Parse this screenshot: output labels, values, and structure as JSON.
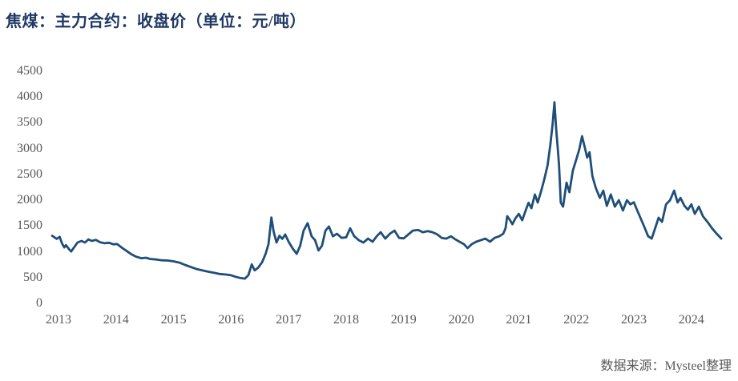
{
  "chart_data": {
    "type": "line",
    "title": "焦煤：主力合约：收盘价（单位：元/吨）",
    "source": "数据来源：Mysteel整理",
    "xlabel": "",
    "ylabel": "元/吨",
    "ylim": [
      0,
      4500
    ],
    "yticks": [
      0,
      500,
      1000,
      1500,
      2000,
      2500,
      3000,
      3500,
      4000,
      4500
    ],
    "xticks": [
      2013,
      2014,
      2015,
      2016,
      2017,
      2018,
      2019,
      2020,
      2021,
      2022,
      2023,
      2024
    ],
    "grid": false,
    "legend_position": "none",
    "colors": {
      "line": "#1F4E79",
      "title": "#1F3864",
      "axis_labels": "#595959",
      "source_text": "#595959"
    },
    "series": [
      {
        "name": "焦煤主力合约收盘价",
        "points": [
          [
            2012.89,
            1310
          ],
          [
            2012.97,
            1250
          ],
          [
            2013.02,
            1290
          ],
          [
            2013.06,
            1165
          ],
          [
            2013.1,
            1085
          ],
          [
            2013.13,
            1130
          ],
          [
            2013.18,
            1055
          ],
          [
            2013.22,
            1005
          ],
          [
            2013.27,
            1085
          ],
          [
            2013.33,
            1180
          ],
          [
            2013.4,
            1210
          ],
          [
            2013.46,
            1180
          ],
          [
            2013.52,
            1240
          ],
          [
            2013.58,
            1210
          ],
          [
            2013.65,
            1230
          ],
          [
            2013.72,
            1185
          ],
          [
            2013.8,
            1165
          ],
          [
            2013.88,
            1175
          ],
          [
            2013.95,
            1145
          ],
          [
            2014.02,
            1150
          ],
          [
            2014.1,
            1080
          ],
          [
            2014.18,
            1020
          ],
          [
            2014.27,
            950
          ],
          [
            2014.35,
            905
          ],
          [
            2014.44,
            875
          ],
          [
            2014.52,
            885
          ],
          [
            2014.6,
            860
          ],
          [
            2014.7,
            850
          ],
          [
            2014.8,
            835
          ],
          [
            2014.9,
            830
          ],
          [
            2015.0,
            815
          ],
          [
            2015.1,
            790
          ],
          [
            2015.2,
            745
          ],
          [
            2015.3,
            705
          ],
          [
            2015.4,
            665
          ],
          [
            2015.5,
            640
          ],
          [
            2015.6,
            615
          ],
          [
            2015.7,
            595
          ],
          [
            2015.8,
            570
          ],
          [
            2015.9,
            560
          ],
          [
            2016.0,
            545
          ],
          [
            2016.08,
            515
          ],
          [
            2016.16,
            492
          ],
          [
            2016.24,
            480
          ],
          [
            2016.3,
            545
          ],
          [
            2016.36,
            755
          ],
          [
            2016.41,
            640
          ],
          [
            2016.47,
            690
          ],
          [
            2016.54,
            800
          ],
          [
            2016.6,
            960
          ],
          [
            2016.65,
            1150
          ],
          [
            2016.7,
            1665
          ],
          [
            2016.74,
            1390
          ],
          [
            2016.79,
            1180
          ],
          [
            2016.84,
            1310
          ],
          [
            2016.89,
            1250
          ],
          [
            2016.94,
            1335
          ],
          [
            2017.0,
            1195
          ],
          [
            2017.07,
            1065
          ],
          [
            2017.14,
            960
          ],
          [
            2017.2,
            1115
          ],
          [
            2017.26,
            1410
          ],
          [
            2017.33,
            1555
          ],
          [
            2017.4,
            1300
          ],
          [
            2017.46,
            1225
          ],
          [
            2017.52,
            1025
          ],
          [
            2017.58,
            1115
          ],
          [
            2017.64,
            1410
          ],
          [
            2017.7,
            1490
          ],
          [
            2017.77,
            1300
          ],
          [
            2017.84,
            1350
          ],
          [
            2017.92,
            1270
          ],
          [
            2018.0,
            1280
          ],
          [
            2018.07,
            1455
          ],
          [
            2018.14,
            1300
          ],
          [
            2018.22,
            1225
          ],
          [
            2018.3,
            1180
          ],
          [
            2018.38,
            1255
          ],
          [
            2018.46,
            1195
          ],
          [
            2018.53,
            1300
          ],
          [
            2018.6,
            1380
          ],
          [
            2018.68,
            1255
          ],
          [
            2018.76,
            1350
          ],
          [
            2018.84,
            1410
          ],
          [
            2018.92,
            1270
          ],
          [
            2019.0,
            1260
          ],
          [
            2019.08,
            1335
          ],
          [
            2019.16,
            1410
          ],
          [
            2019.25,
            1425
          ],
          [
            2019.33,
            1380
          ],
          [
            2019.42,
            1400
          ],
          [
            2019.5,
            1380
          ],
          [
            2019.58,
            1340
          ],
          [
            2019.66,
            1270
          ],
          [
            2019.74,
            1255
          ],
          [
            2019.82,
            1300
          ],
          [
            2019.9,
            1240
          ],
          [
            2019.97,
            1195
          ],
          [
            2020.05,
            1145
          ],
          [
            2020.11,
            1070
          ],
          [
            2020.18,
            1145
          ],
          [
            2020.26,
            1195
          ],
          [
            2020.34,
            1225
          ],
          [
            2020.42,
            1255
          ],
          [
            2020.5,
            1195
          ],
          [
            2020.58,
            1270
          ],
          [
            2020.66,
            1300
          ],
          [
            2020.73,
            1350
          ],
          [
            2020.77,
            1455
          ],
          [
            2020.8,
            1690
          ],
          [
            2020.85,
            1610
          ],
          [
            2020.89,
            1535
          ],
          [
            2020.94,
            1645
          ],
          [
            2021.0,
            1735
          ],
          [
            2021.06,
            1610
          ],
          [
            2021.12,
            1800
          ],
          [
            2021.17,
            1950
          ],
          [
            2021.22,
            1845
          ],
          [
            2021.28,
            2110
          ],
          [
            2021.33,
            1955
          ],
          [
            2021.39,
            2180
          ],
          [
            2021.44,
            2390
          ],
          [
            2021.5,
            2670
          ],
          [
            2021.55,
            3085
          ],
          [
            2021.59,
            3500
          ],
          [
            2021.62,
            3900
          ],
          [
            2021.65,
            3380
          ],
          [
            2021.68,
            2980
          ],
          [
            2021.7,
            2670
          ],
          [
            2021.73,
            1955
          ],
          [
            2021.77,
            1875
          ],
          [
            2021.83,
            2340
          ],
          [
            2021.88,
            2155
          ],
          [
            2021.94,
            2575
          ],
          [
            2022.0,
            2790
          ],
          [
            2022.05,
            2980
          ],
          [
            2022.1,
            3240
          ],
          [
            2022.14,
            3055
          ],
          [
            2022.19,
            2825
          ],
          [
            2022.23,
            2930
          ],
          [
            2022.28,
            2465
          ],
          [
            2022.34,
            2235
          ],
          [
            2022.41,
            2045
          ],
          [
            2022.47,
            2185
          ],
          [
            2022.53,
            1890
          ],
          [
            2022.6,
            2110
          ],
          [
            2022.67,
            1875
          ],
          [
            2022.74,
            2000
          ],
          [
            2022.81,
            1800
          ],
          [
            2022.88,
            2000
          ],
          [
            2022.94,
            1920
          ],
          [
            2023.0,
            1960
          ],
          [
            2023.06,
            1800
          ],
          [
            2023.12,
            1645
          ],
          [
            2023.18,
            1490
          ],
          [
            2023.25,
            1300
          ],
          [
            2023.31,
            1255
          ],
          [
            2023.38,
            1490
          ],
          [
            2023.43,
            1660
          ],
          [
            2023.49,
            1580
          ],
          [
            2023.56,
            1920
          ],
          [
            2023.63,
            2000
          ],
          [
            2023.7,
            2185
          ],
          [
            2023.76,
            1955
          ],
          [
            2023.81,
            2045
          ],
          [
            2023.88,
            1890
          ],
          [
            2023.94,
            1815
          ],
          [
            2024.0,
            1920
          ],
          [
            2024.06,
            1735
          ],
          [
            2024.13,
            1875
          ],
          [
            2024.2,
            1690
          ],
          [
            2024.28,
            1580
          ],
          [
            2024.36,
            1455
          ],
          [
            2024.44,
            1350
          ],
          [
            2024.52,
            1255
          ]
        ]
      }
    ]
  }
}
